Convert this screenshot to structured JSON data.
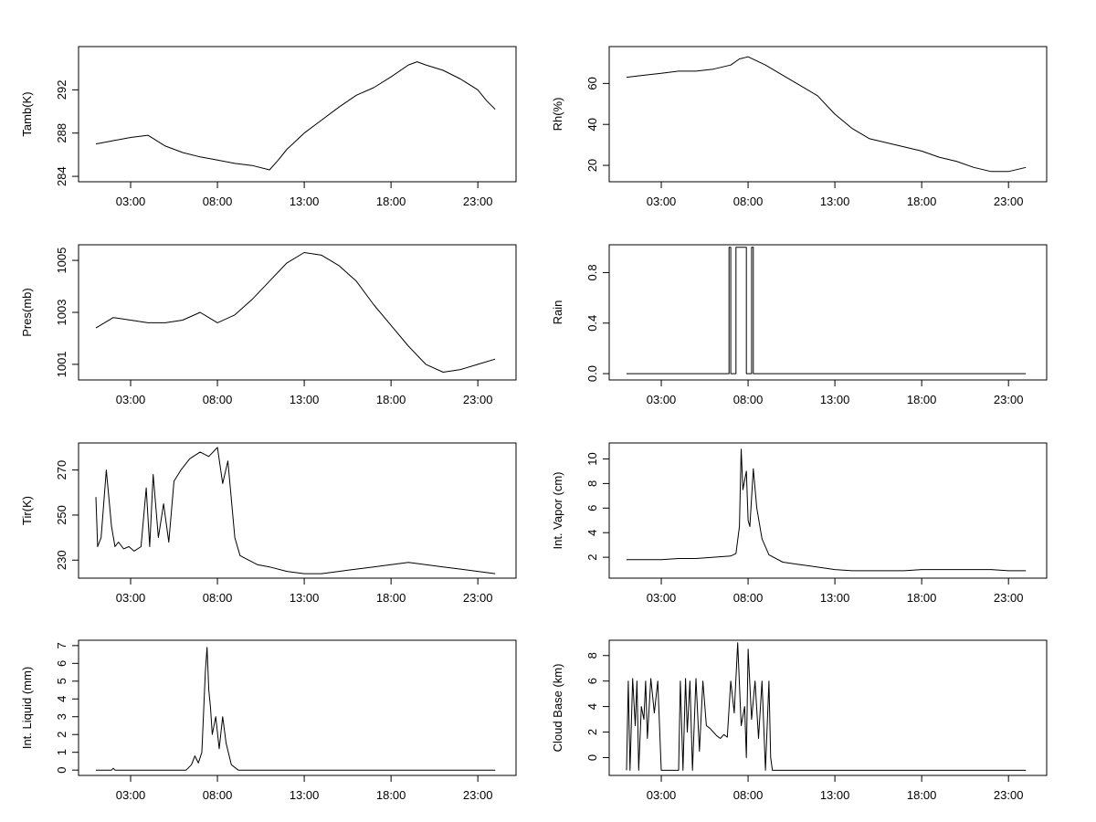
{
  "chart_data": [
    {
      "type": "line",
      "ylabel": "Tamb(K)",
      "ylim": [
        283.5,
        296
      ],
      "yticks": [
        284,
        288,
        292
      ],
      "grid": false,
      "xticks": [
        "03:00",
        "08:00",
        "13:00",
        "18:00",
        "23:00"
      ],
      "xlim": [
        0,
        25.2
      ],
      "x": [
        1,
        2,
        3,
        4,
        5,
        6,
        7,
        8,
        9,
        10,
        11,
        11.5,
        12,
        13,
        14,
        15,
        16,
        17,
        18,
        19,
        19.5,
        20,
        21,
        22,
        23,
        23.5,
        24
      ],
      "series": [
        {
          "values": [
            287,
            287.3,
            287.6,
            287.8,
            286.8,
            286.2,
            285.8,
            285.5,
            285.2,
            285,
            284.6,
            285.5,
            286.5,
            288,
            289.2,
            290.4,
            291.5,
            292.2,
            293.2,
            294.3,
            294.6,
            294.3,
            293.8,
            293,
            292,
            291,
            290.2
          ]
        }
      ]
    },
    {
      "type": "line",
      "ylabel": "Rh(%)",
      "ylim": [
        12,
        78
      ],
      "yticks": [
        20,
        40,
        60
      ],
      "grid": false,
      "xticks": [
        "03:00",
        "08:00",
        "13:00",
        "18:00",
        "23:00"
      ],
      "xlim": [
        0,
        25.2
      ],
      "x": [
        1,
        2,
        3,
        4,
        5,
        6,
        7,
        7.5,
        8,
        9,
        10,
        11,
        12,
        13,
        14,
        15,
        16,
        17,
        18,
        19,
        20,
        21,
        22,
        23,
        24
      ],
      "series": [
        {
          "values": [
            63,
            64,
            65,
            66,
            66,
            67,
            69,
            72,
            73,
            69,
            64,
            59,
            54,
            45,
            38,
            33,
            31,
            29,
            27,
            24,
            22,
            19,
            17,
            17,
            19
          ]
        }
      ]
    },
    {
      "type": "line",
      "ylabel": "Pres(mb)",
      "ylim": [
        1000.4,
        1005.6
      ],
      "yticks": [
        1001,
        1003,
        1005
      ],
      "grid": false,
      "xticks": [
        "03:00",
        "08:00",
        "13:00",
        "18:00",
        "23:00"
      ],
      "xlim": [
        0,
        25.2
      ],
      "x": [
        1,
        2,
        3,
        4,
        5,
        6,
        7,
        7.5,
        8,
        9,
        10,
        11,
        12,
        13,
        14,
        15,
        16,
        17,
        18,
        19,
        20,
        21,
        22,
        23,
        24
      ],
      "series": [
        {
          "values": [
            1002.4,
            1002.8,
            1002.7,
            1002.6,
            1002.6,
            1002.7,
            1003,
            1002.8,
            1002.6,
            1002.9,
            1003.5,
            1004.2,
            1004.9,
            1005.3,
            1005.2,
            1004.8,
            1004.2,
            1003.3,
            1002.5,
            1001.7,
            1001.0,
            1000.7,
            1000.8,
            1001.0,
            1001.2
          ]
        }
      ]
    },
    {
      "type": "line",
      "ylabel": "Rain",
      "ylim": [
        -0.05,
        1.02
      ],
      "yticks": [
        0.0,
        0.4,
        0.8
      ],
      "ytick_labels": [
        "0.0",
        "0.4",
        "0.8"
      ],
      "grid": false,
      "xticks": [
        "03:00",
        "08:00",
        "13:00",
        "18:00",
        "23:00"
      ],
      "xlim": [
        0,
        25.2
      ],
      "x": [
        1,
        6.9,
        6.9,
        7.0,
        7.0,
        7.3,
        7.3,
        7.9,
        7.9,
        8.2,
        8.2,
        8.3,
        8.3,
        8.4,
        8.4,
        24
      ],
      "series": [
        {
          "values": [
            0,
            0,
            1,
            1,
            0,
            0,
            1,
            1,
            0,
            0,
            1,
            1,
            0,
            0,
            0,
            0
          ]
        }
      ]
    },
    {
      "type": "line",
      "ylabel": "Tir(K)",
      "ylim": [
        222,
        282
      ],
      "yticks": [
        230,
        250,
        270
      ],
      "grid": false,
      "xticks": [
        "03:00",
        "08:00",
        "13:00",
        "18:00",
        "23:00"
      ],
      "xlim": [
        0,
        25.2
      ],
      "x": [
        1,
        1.1,
        1.3,
        1.6,
        1.9,
        2.1,
        2.3,
        2.6,
        2.9,
        3.2,
        3.6,
        3.9,
        4.1,
        4.3,
        4.6,
        4.9,
        5.2,
        5.5,
        5.9,
        6.4,
        7,
        7.5,
        8,
        8.3,
        8.6,
        9,
        9.3,
        9.8,
        10.3,
        11,
        12,
        13,
        14,
        15,
        16,
        17,
        18,
        19,
        20,
        21,
        22,
        23,
        24
      ],
      "series": [
        {
          "values": [
            258,
            236,
            240,
            270,
            245,
            236,
            238,
            235,
            236,
            234,
            236,
            262,
            236,
            268,
            240,
            255,
            238,
            265,
            270,
            275,
            278,
            276,
            280,
            264,
            274,
            240,
            232,
            230,
            228,
            227,
            225,
            224,
            224,
            225,
            226,
            227,
            228,
            229,
            228,
            227,
            226,
            225,
            224
          ]
        }
      ]
    },
    {
      "type": "line",
      "ylabel": "Int. Vapor (cm)",
      "ylim": [
        0.3,
        11.3
      ],
      "yticks": [
        2,
        4,
        6,
        8,
        10
      ],
      "grid": false,
      "xticks": [
        "03:00",
        "08:00",
        "13:00",
        "18:00",
        "23:00"
      ],
      "xlim": [
        0,
        25.2
      ],
      "x": [
        1,
        2,
        3,
        4,
        5,
        6,
        7,
        7.3,
        7.5,
        7.6,
        7.7,
        7.9,
        8.0,
        8.1,
        8.3,
        8.5,
        8.8,
        9.2,
        10,
        11,
        12,
        13,
        14,
        15,
        16,
        17,
        18,
        19,
        20,
        21,
        22,
        23,
        24
      ],
      "series": [
        {
          "values": [
            1.8,
            1.8,
            1.8,
            1.9,
            1.9,
            2.0,
            2.1,
            2.3,
            4.5,
            10.8,
            7.5,
            9.0,
            5.0,
            4.5,
            9.2,
            6.0,
            3.5,
            2.2,
            1.6,
            1.4,
            1.2,
            1.0,
            0.9,
            0.9,
            0.9,
            0.9,
            1.0,
            1.0,
            1.0,
            1.0,
            1.0,
            0.9,
            0.9
          ]
        }
      ]
    },
    {
      "type": "line",
      "ylabel": "Int. Liquid (mm)",
      "ylim": [
        -0.3,
        7.3
      ],
      "yticks": [
        0,
        1,
        2,
        3,
        4,
        5,
        6,
        7
      ],
      "grid": false,
      "xticks": [
        "03:00",
        "08:00",
        "13:00",
        "18:00",
        "23:00"
      ],
      "xlim": [
        0,
        25.2
      ],
      "x": [
        1,
        1.9,
        2.0,
        2.1,
        6.2,
        6.5,
        6.7,
        6.9,
        7.1,
        7.3,
        7.4,
        7.5,
        7.6,
        7.7,
        7.9,
        8.1,
        8.3,
        8.5,
        8.8,
        9.2,
        10,
        24
      ],
      "series": [
        {
          "values": [
            0,
            0,
            0.1,
            0,
            0,
            0.3,
            0.8,
            0.4,
            1.0,
            5.5,
            6.9,
            4.5,
            3.5,
            2.0,
            3.0,
            1.2,
            3.0,
            1.5,
            0.3,
            0,
            0,
            0
          ]
        }
      ]
    },
    {
      "type": "line",
      "ylabel": "Cloud Base (km)",
      "ylim": [
        -1.4,
        9.2
      ],
      "yticks": [
        0,
        2,
        4,
        6,
        8
      ],
      "grid": false,
      "xticks": [
        "03:00",
        "08:00",
        "13:00",
        "18:00",
        "23:00"
      ],
      "xlim": [
        0,
        25.2
      ],
      "x": [
        1,
        1.1,
        1.2,
        1.35,
        1.5,
        1.6,
        1.7,
        1.85,
        2.0,
        2.1,
        2.2,
        2.4,
        2.6,
        2.8,
        3.0,
        3.2,
        3.4,
        4.0,
        4.1,
        4.25,
        4.4,
        4.5,
        4.65,
        4.8,
        5.0,
        5.2,
        5.4,
        5.6,
        5.8,
        6.0,
        6.2,
        6.4,
        6.6,
        6.8,
        7.0,
        7.2,
        7.4,
        7.6,
        7.8,
        7.9,
        8.0,
        8.2,
        8.4,
        8.6,
        8.8,
        9.0,
        9.2,
        9.3,
        9.4,
        24
      ],
      "series": [
        {
          "values": [
            -1,
            6,
            -1,
            6.2,
            2.5,
            6,
            -1,
            4,
            3,
            6,
            1.5,
            6.2,
            3.5,
            6,
            -1,
            -1,
            -1,
            -1,
            6,
            -1,
            6.2,
            2,
            6,
            -1,
            6.2,
            0.5,
            6,
            2.5,
            2.3,
            2,
            1.7,
            1.5,
            1.8,
            1.6,
            6,
            3.5,
            9,
            2.5,
            4,
            0,
            8.5,
            3,
            6,
            1.5,
            6,
            -1,
            6,
            0,
            -1,
            -1
          ]
        }
      ]
    }
  ]
}
